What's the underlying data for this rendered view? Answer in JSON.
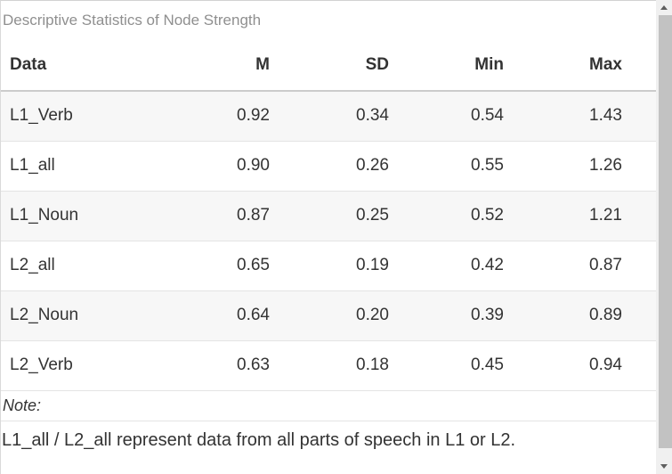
{
  "title": "Descriptive Statistics of Node Strength",
  "table": {
    "columns": [
      "Data",
      "M",
      "SD",
      "Min",
      "Max"
    ],
    "rows": [
      [
        "L1_Verb",
        "0.92",
        "0.34",
        "0.54",
        "1.43"
      ],
      [
        "L1_all",
        "0.90",
        "0.26",
        "0.55",
        "1.26"
      ],
      [
        "L1_Noun",
        "0.87",
        "0.25",
        "0.52",
        "1.21"
      ],
      [
        "L2_all",
        "0.65",
        "0.19",
        "0.42",
        "0.87"
      ],
      [
        "L2_Noun",
        "0.64",
        "0.20",
        "0.39",
        "0.89"
      ],
      [
        "L2_Verb",
        "0.63",
        "0.18",
        "0.45",
        "0.94"
      ]
    ]
  },
  "note": {
    "label": "Note:",
    "text": "L1_all / L2_all represent data from all parts of speech in L1 or L2."
  },
  "colors": {
    "stripe_background": "#f7f7f7",
    "title_text": "#8f8f8f",
    "body_text": "#333333",
    "row_border": "#e4e4e4",
    "header_border": "#cbcbcb",
    "scrollbar_track": "#f0f0f0",
    "scrollbar_thumb": "#c2c2c2"
  }
}
